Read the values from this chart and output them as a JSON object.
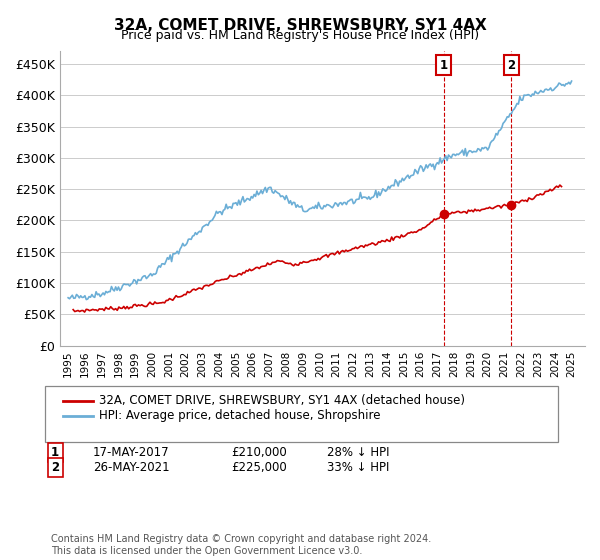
{
  "title": "32A, COMET DRIVE, SHREWSBURY, SY1 4AX",
  "subtitle": "Price paid vs. HM Land Registry's House Price Index (HPI)",
  "ylabel_ticks": [
    "£0",
    "£50K",
    "£100K",
    "£150K",
    "£200K",
    "£250K",
    "£300K",
    "£350K",
    "£400K",
    "£450K"
  ],
  "ytick_values": [
    0,
    50000,
    100000,
    150000,
    200000,
    250000,
    300000,
    350000,
    400000,
    450000
  ],
  "ylim": [
    0,
    470000
  ],
  "hpi_color": "#6baed6",
  "price_color": "#cc0000",
  "vline_color": "#cc0000",
  "marker1_x": 2017.38,
  "marker2_x": 2021.4,
  "marker1_price": 210000,
  "marker2_price": 225000,
  "legend_line1": "32A, COMET DRIVE, SHREWSBURY, SY1 4AX (detached house)",
  "legend_line2": "HPI: Average price, detached house, Shropshire",
  "ann1_date": "17-MAY-2017",
  "ann1_price": "£210,000",
  "ann1_note": "28% ↓ HPI",
  "ann2_date": "26-MAY-2021",
  "ann2_price": "£225,000",
  "ann2_note": "33% ↓ HPI",
  "footer": "Contains HM Land Registry data © Crown copyright and database right 2024.\nThis data is licensed under the Open Government Licence v3.0.",
  "background_color": "#ffffff",
  "grid_color": "#cccccc",
  "sale_years": [
    1995.3,
    1998.0,
    2000.5,
    2004.2,
    2007.5,
    2008.5,
    2010.0,
    2012.0,
    2014.0,
    2016.0,
    2017.38,
    2019.0,
    2021.4,
    2022.5,
    2024.4
  ],
  "sale_prices": [
    55000,
    60000,
    68000,
    105000,
    135000,
    130000,
    140000,
    155000,
    168000,
    185000,
    210000,
    215000,
    225000,
    235000,
    255000
  ],
  "hpi_keypoints_x": [
    1995,
    1997,
    2000,
    2004,
    2007,
    2009,
    2013,
    2016,
    2018,
    2020,
    2022,
    2023,
    2025
  ],
  "hpi_keypoints_y": [
    75000,
    83000,
    113000,
    213000,
    252000,
    216000,
    236000,
    281000,
    305000,
    315000,
    395000,
    405000,
    421000
  ]
}
